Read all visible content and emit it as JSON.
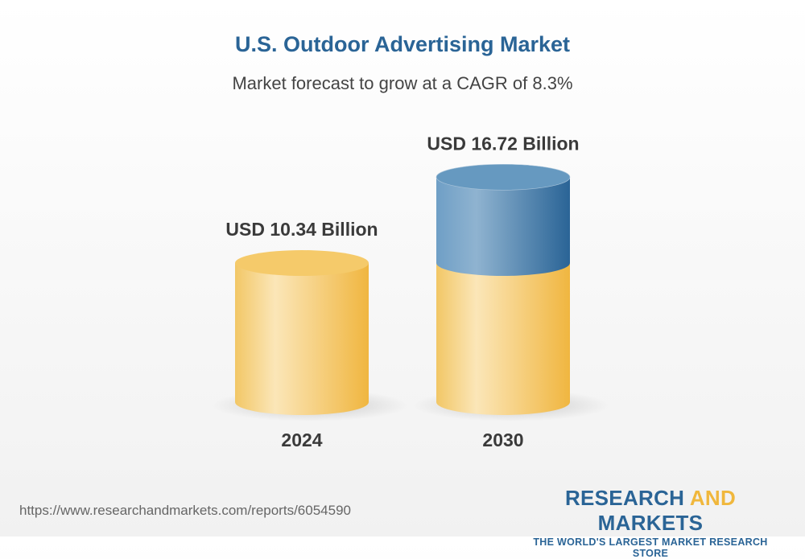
{
  "chart_data": {
    "type": "bar",
    "style": "3d-cylinder",
    "title": "U.S. Outdoor Advertising Market",
    "subtitle": "Market forecast to grow at a CAGR of 8.3%",
    "categories": [
      "2024",
      "2030"
    ],
    "values": [
      10.34,
      16.72
    ],
    "data_labels": [
      "USD 10.34 Billion",
      "USD 16.72 Billion"
    ],
    "colors": {
      "base": "#f0b73c",
      "growth": "#2a6496",
      "title": "#2a6496"
    }
  },
  "footer": {
    "url": "https://www.researchandmarkets.com/reports/6054590",
    "logo": {
      "word1": "RESEARCH",
      "word2": "AND",
      "word3": "MARKETS",
      "tagline": "THE WORLD'S LARGEST MARKET RESEARCH STORE"
    }
  }
}
